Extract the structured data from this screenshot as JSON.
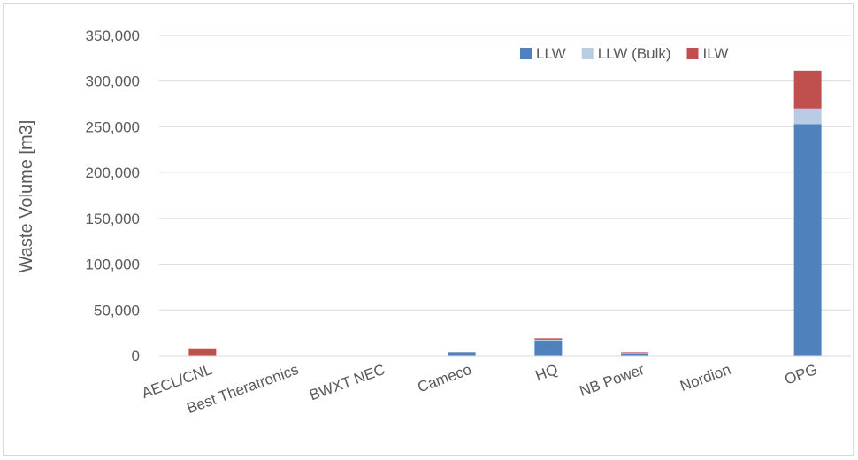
{
  "chart_data": {
    "type": "bar",
    "stacked": true,
    "title": "",
    "xlabel": "",
    "ylabel": "Waste Volume [m3]",
    "ylim": [
      0,
      350000
    ],
    "yticks": [
      "0",
      "50,000",
      "100,000",
      "150,000",
      "200,000",
      "250,000",
      "300,000",
      "350,000"
    ],
    "ytick_values": [
      0,
      50000,
      100000,
      150000,
      200000,
      250000,
      300000,
      350000
    ],
    "grid": true,
    "legend_position": "top-right",
    "categories": [
      "AECL/CNL",
      "Best Theratronics",
      "BWXT NEC",
      "Cameco",
      "HQ",
      "NB Power",
      "Nordion",
      "OPG"
    ],
    "series": [
      {
        "name": "LLW",
        "color": "#4f81bd",
        "values": [
          300,
          100,
          100,
          3500,
          16500,
          2000,
          200,
          253000
        ]
      },
      {
        "name": "LLW (Bulk)",
        "color": "#b8cce4",
        "values": [
          0,
          0,
          0,
          0,
          1000,
          500,
          0,
          17000
        ]
      },
      {
        "name": "ILW",
        "color": "#c0504d",
        "values": [
          7700,
          0,
          0,
          100,
          1500,
          1000,
          100,
          41500
        ]
      }
    ]
  }
}
